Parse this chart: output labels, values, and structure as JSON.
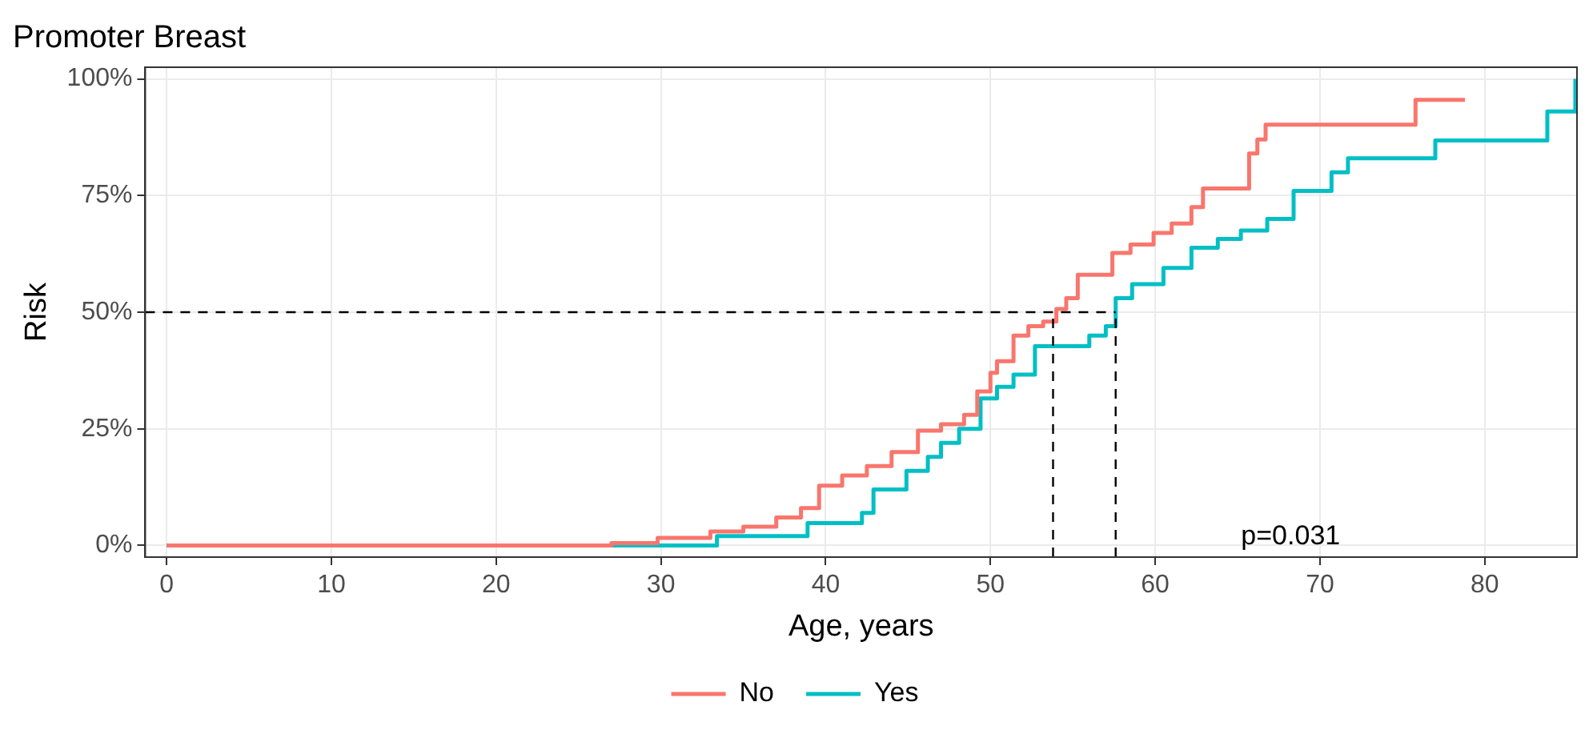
{
  "chart_data": {
    "type": "step",
    "title": "Promoter Breast",
    "xlabel": "Age, years",
    "ylabel": "Risk",
    "xlim": [
      -1.3,
      85.6
    ],
    "xticks": [
      0,
      10,
      20,
      30,
      40,
      50,
      60,
      70,
      80
    ],
    "ylim": [
      -2.5,
      102.5
    ],
    "yticks": [
      {
        "value": 0,
        "label": "0%"
      },
      {
        "value": 25,
        "label": "25%"
      },
      {
        "value": 50,
        "label": "50%"
      },
      {
        "value": 75,
        "label": "75%"
      },
      {
        "value": 100,
        "label": "100%"
      }
    ],
    "grid": true,
    "legend": "bottom",
    "line_style": "solid",
    "marker": "none",
    "ref_lines": [
      {
        "axis": "y",
        "value": 50,
        "line_style": "dashed",
        "color": "#000000"
      },
      {
        "axis": "x",
        "value": 53.8,
        "line_style": "dashed",
        "color": "#000000"
      },
      {
        "axis": "x",
        "value": 57.6,
        "line_style": "dashed",
        "color": "#000000"
      }
    ],
    "annotations": [
      "p=0.031"
    ],
    "series": [
      {
        "name": "No",
        "color": "#f8766d",
        "x": [
          0,
          27,
          29.8,
          33,
          35,
          37,
          38.5,
          39.6,
          41,
          42.5,
          44,
          45.6,
          47,
          48.4,
          49.2,
          50,
          50.4,
          51.4,
          52.3,
          53.2,
          54,
          54.6,
          55.3,
          57.4,
          58.5,
          59.9,
          61,
          62.2,
          62.9,
          65.7,
          66.2,
          66.7,
          75.8,
          78.8
        ],
        "values": [
          0,
          0.5,
          1.6,
          3,
          4,
          6,
          8,
          12.8,
          15,
          17,
          20,
          24.6,
          26,
          28,
          33,
          37,
          39.5,
          45,
          47,
          48,
          50.7,
          53,
          58,
          62.7,
          64.5,
          67,
          69,
          72.5,
          76.5,
          84,
          87,
          90.2,
          95.5,
          95.5
        ]
      },
      {
        "name": "Yes",
        "color": "#00bfc4",
        "x": [
          0,
          33.4,
          38.9,
          42.2,
          42.9,
          44.9,
          46.2,
          47,
          48.1,
          49.4,
          50.4,
          51.4,
          52.7,
          56,
          57,
          57.6,
          58.6,
          60.5,
          62.2,
          63.8,
          65.2,
          66.8,
          68.4,
          70.7,
          71.7,
          77,
          83.8,
          85.5
        ],
        "values": [
          0,
          2,
          4.8,
          7,
          12,
          16,
          19,
          22,
          25,
          31.5,
          34,
          36.6,
          42.7,
          45,
          47,
          53,
          56,
          59.5,
          63.8,
          65.7,
          67.5,
          70,
          76,
          80,
          83,
          86.8,
          93,
          100
        ]
      }
    ]
  }
}
